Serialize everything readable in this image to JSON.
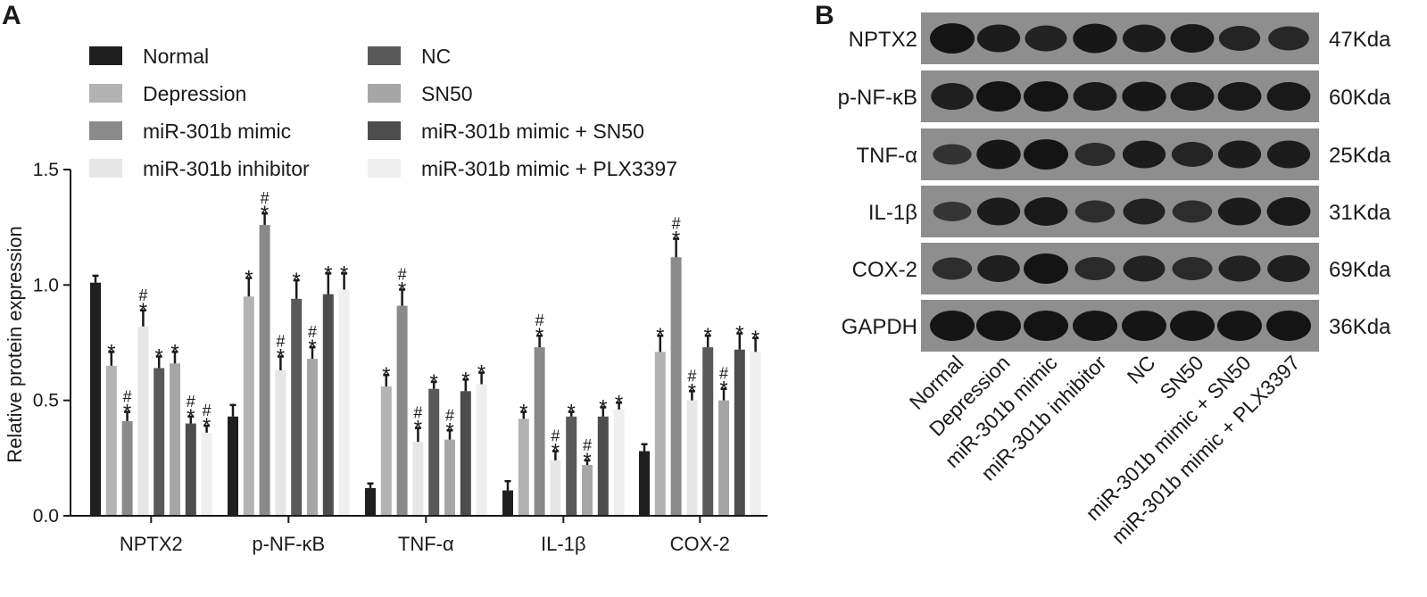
{
  "panels": {
    "a": "A",
    "b": "B"
  },
  "chart_data": [
    {
      "type": "bar",
      "title": "",
      "xlabel": "",
      "ylabel": "Relative protein expression",
      "ylim": [
        0,
        1.5
      ],
      "yticks": [
        "0.0",
        "0.5",
        "1.0",
        "1.5"
      ],
      "grid": false,
      "legend_position": "top",
      "categories": [
        "NPTX2",
        "p-NF-κB",
        "TNF-α",
        "IL-1β",
        "COX-2"
      ],
      "series": [
        {
          "name": "Normal",
          "color": "#1f1f1f",
          "values": [
            1.01,
            0.43,
            0.12,
            0.11,
            0.28
          ],
          "errors": [
            0.03,
            0.05,
            0.02,
            0.04,
            0.03
          ],
          "marks": [
            "",
            "",
            "",
            "",
            ""
          ]
        },
        {
          "name": "Depression",
          "color": "#b3b3b3",
          "values": [
            0.65,
            0.95,
            0.56,
            0.42,
            0.71
          ],
          "errors": [
            0.06,
            0.08,
            0.05,
            0.03,
            0.07
          ],
          "marks": [
            "*",
            "*",
            "*",
            "*",
            "*"
          ]
        },
        {
          "name": "miR-301b mimic",
          "color": "#8a8a8a",
          "values": [
            0.41,
            1.26,
            0.91,
            0.73,
            1.12
          ],
          "errors": [
            0.04,
            0.05,
            0.07,
            0.05,
            0.08
          ],
          "marks": [
            "*#",
            "*#",
            "*#",
            "*#",
            "*#"
          ]
        },
        {
          "name": "miR-301b inhibitor",
          "color": "#e6e6e6",
          "values": [
            0.82,
            0.63,
            0.32,
            0.24,
            0.5
          ],
          "errors": [
            0.07,
            0.06,
            0.06,
            0.04,
            0.04
          ],
          "marks": [
            "*#",
            "*#",
            "*#",
            "*#",
            "*#"
          ]
        },
        {
          "name": "NC",
          "color": "#595959",
          "values": [
            0.64,
            0.94,
            0.55,
            0.43,
            0.73
          ],
          "errors": [
            0.05,
            0.08,
            0.03,
            0.02,
            0.05
          ],
          "marks": [
            "*",
            "*",
            "*",
            "*",
            "*"
          ]
        },
        {
          "name": "SN50",
          "color": "#a6a6a6",
          "values": [
            0.66,
            0.68,
            0.33,
            0.22,
            0.5
          ],
          "errors": [
            0.05,
            0.05,
            0.04,
            0.02,
            0.05
          ],
          "marks": [
            "*",
            "*#",
            "*#",
            "*#",
            "*#"
          ]
        },
        {
          "name": "miR-301b mimic + SN50",
          "color": "#4d4d4d",
          "values": [
            0.4,
            0.96,
            0.54,
            0.43,
            0.72
          ],
          "errors": [
            0.03,
            0.09,
            0.05,
            0.04,
            0.07
          ],
          "marks": [
            "*#",
            "*",
            "*",
            "*",
            "*"
          ]
        },
        {
          "name": "miR-301b mimic + PLX3397",
          "color": "#efefef",
          "values": [
            0.36,
            0.98,
            0.57,
            0.46,
            0.71
          ],
          "errors": [
            0.03,
            0.07,
            0.05,
            0.03,
            0.06
          ],
          "marks": [
            "*#",
            "*",
            "*",
            "*",
            "*"
          ]
        }
      ]
    },
    {
      "type": "table",
      "title": "",
      "background_color": "#8e8e8e",
      "band_color": "#141414",
      "rows": [
        {
          "label": "NPTX2",
          "size": "47Kda",
          "intensity": [
            1.0,
            0.85,
            0.75,
            0.95,
            0.85,
            0.9,
            0.7,
            0.65
          ]
        },
        {
          "label": "p-NF-κB",
          "size": "60Kda",
          "intensity": [
            0.8,
            1.0,
            1.0,
            0.9,
            0.95,
            0.9,
            0.9,
            0.9
          ]
        },
        {
          "label": "TNF-α",
          "size": "25Kda",
          "intensity": [
            0.45,
            0.95,
            1.0,
            0.6,
            0.85,
            0.7,
            0.85,
            0.85
          ]
        },
        {
          "label": "IL-1β",
          "size": "31Kda",
          "intensity": [
            0.4,
            0.85,
            0.9,
            0.55,
            0.75,
            0.55,
            0.85,
            0.9
          ]
        },
        {
          "label": "COX-2",
          "size": "69Kda",
          "intensity": [
            0.55,
            0.8,
            1.0,
            0.6,
            0.75,
            0.6,
            0.75,
            0.8
          ]
        },
        {
          "label": "GAPDH",
          "size": "36Kda",
          "intensity": [
            1.0,
            1.0,
            1.0,
            1.0,
            1.0,
            1.0,
            1.0,
            1.0
          ]
        }
      ],
      "lanes": [
        "Normal",
        "Depression",
        "miR-301b mimic",
        "miR-301b inhibitor",
        "NC",
        "SN50",
        "miR-301b mimic + SN50",
        "miR-301b mimic + PLX3397"
      ]
    }
  ]
}
